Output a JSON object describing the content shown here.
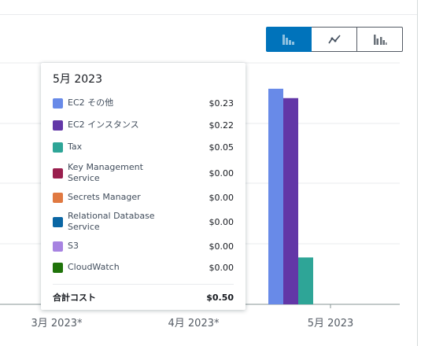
{
  "chart_type_buttons": [
    {
      "name": "stacked-bar",
      "selected": true
    },
    {
      "name": "line",
      "selected": false
    },
    {
      "name": "grouped-bar",
      "selected": false
    }
  ],
  "tooltip": {
    "title": "5月 2023",
    "items": [
      {
        "label": "EC2 その他",
        "value": "$0.23",
        "color": "#688ae8"
      },
      {
        "label": "EC2 インスタンス",
        "value": "$0.22",
        "color": "#6237a7"
      },
      {
        "label": "Tax",
        "value": "$0.05",
        "color": "#2ea597"
      },
      {
        "label": "Key Management Service",
        "value": "$0.00",
        "color": "#9a1f4e"
      },
      {
        "label": "Secrets Manager",
        "value": "$0.00",
        "color": "#e07941"
      },
      {
        "label": "Relational Database Service",
        "value": "$0.00",
        "color": "#0a66a4"
      },
      {
        "label": "S3",
        "value": "$0.00",
        "color": "#a783e1"
      },
      {
        "label": "CloudWatch",
        "value": "$0.00",
        "color": "#1f730a"
      }
    ],
    "total_label": "合計コスト",
    "total_value": "$0.50"
  },
  "chart_data": {
    "type": "bar",
    "categories": [
      "3月 2023*",
      "4月 2023*",
      "5月 2023"
    ],
    "series": [
      {
        "name": "EC2 その他",
        "values": [
          0,
          0,
          0.23
        ],
        "color": "#688ae8"
      },
      {
        "name": "EC2 インスタンス",
        "values": [
          0,
          0,
          0.22
        ],
        "color": "#6237a7"
      },
      {
        "name": "Tax",
        "values": [
          0,
          0,
          0.05
        ],
        "color": "#2ea597"
      }
    ],
    "ylim": [
      0,
      0.25
    ],
    "grid": true
  }
}
